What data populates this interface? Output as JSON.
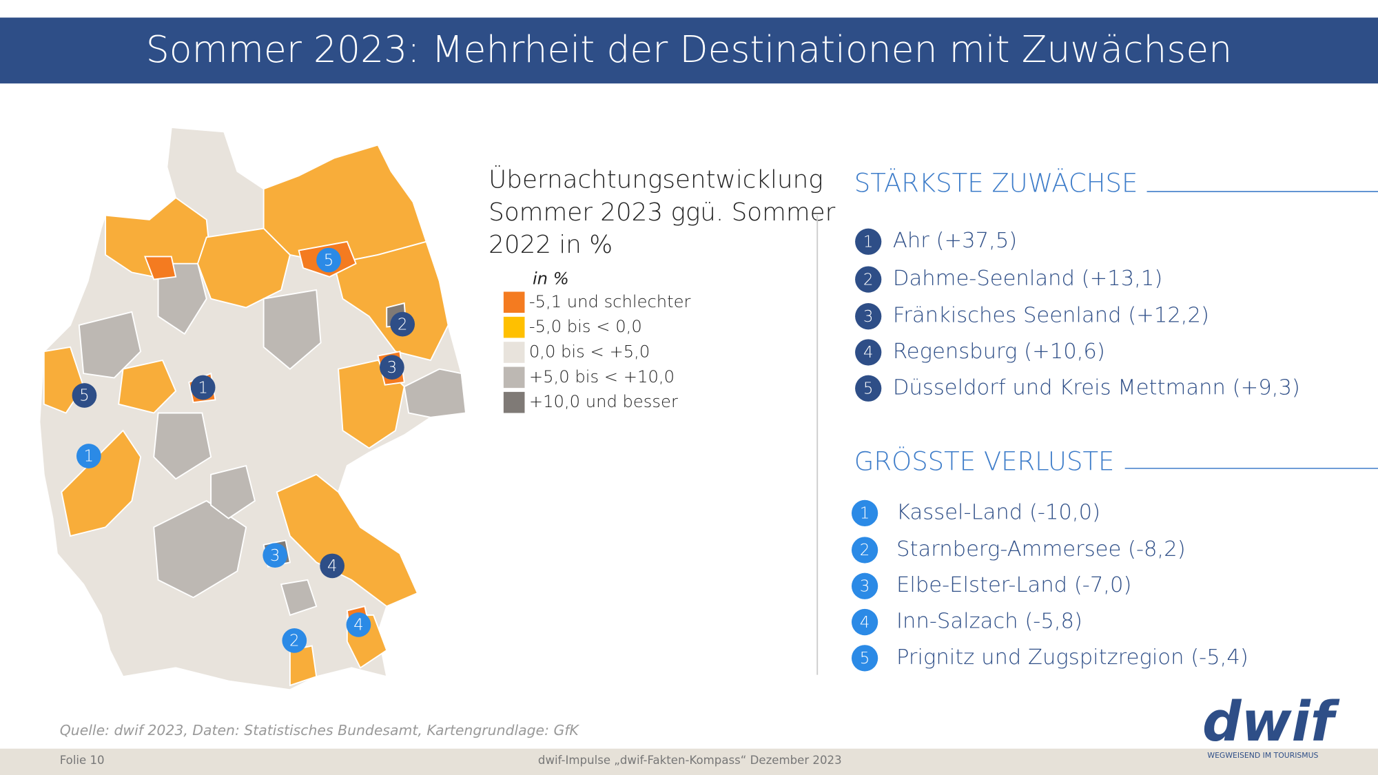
{
  "header": {
    "title": "Sommer 2023: Mehrheit der Destinationen mit Zuwächsen"
  },
  "map": {
    "legend": {
      "title_lines": [
        "Übernachtungsentwicklung",
        "Sommer 2023 ggü. Sommer",
        "2022 in %"
      ],
      "unit": "in %",
      "items": [
        {
          "label": "-5,1 und schlechter",
          "color": "#f47b20"
        },
        {
          "label": "-5,0 bis < 0,0",
          "color": "#ffc000"
        },
        {
          "label": "0,0 bis < +5,0",
          "color": "#e8e3dc"
        },
        {
          "label": "+5,0 bis < +10,0",
          "color": "#bdb8b3"
        },
        {
          "label": "+10,0 und besser",
          "color": "#7f7a76"
        }
      ]
    },
    "gain_markers": {
      "color": "#2e4e87",
      "labels": [
        "1",
        "2",
        "3",
        "4",
        "5"
      ]
    },
    "loss_markers": {
      "color": "#2b8ae6",
      "labels": [
        "1",
        "2",
        "3",
        "4",
        "5"
      ]
    }
  },
  "gains": {
    "title": "STÄRKSTE ZUWÄCHSE",
    "color": "#2e4e87",
    "items": [
      {
        "number": "1",
        "text": "Ahr  (+37,5)"
      },
      {
        "number": "2",
        "text": "Dahme-Seenland (+13,1)"
      },
      {
        "number": "3",
        "text": "Fränkisches Seenland  (+12,2)"
      },
      {
        "number": "4",
        "text": "Regensburg (+10,6)"
      },
      {
        "number": "5",
        "text": "Düsseldorf und Kreis Mettmann (+9,3)"
      }
    ]
  },
  "losses": {
    "title": "GRÖSSTE VERLUSTE",
    "color": "#2b8ae6",
    "items": [
      {
        "number": "1",
        "text": "Kassel-Land (-10,0)"
      },
      {
        "number": "2",
        "text": "Starnberg-Ammersee (-8,2)"
      },
      {
        "number": "3",
        "text": "Elbe-Elster-Land (-7,0)"
      },
      {
        "number": "4",
        "text": "Inn-Salzach (-5,8)"
      },
      {
        "number": "5",
        "text": "Prignitz und Zugspitzregion (-5,4)"
      }
    ]
  },
  "footer": {
    "source": "Quelle: dwif 2023,  Daten: Statistisches Bundesamt, Kartengrundlage: GfK",
    "slide": "Folie 10",
    "center": "dwif-Impulse „dwif-Fakten-Kompass“ Dezember 2023"
  },
  "logo": {
    "text": "dwif",
    "tagline": "WEGWEISEND IM TOURISMUS"
  }
}
